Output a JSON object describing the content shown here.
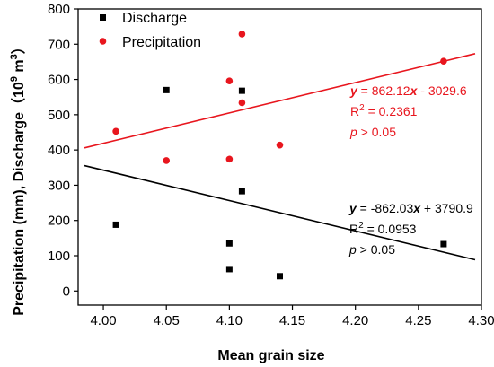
{
  "chart_data": {
    "type": "scatter",
    "xlabel": "Mean grain size",
    "ylabel_main": "Precipitation (mm), Discharge（",
    "ylabel_base": "10",
    "ylabel_exp": "9",
    "ylabel_unit": " m",
    "ylabel_unit_exp": "3",
    "ylabel_close": "）",
    "xlim": [
      3.98,
      4.3
    ],
    "ylim": [
      -40,
      800
    ],
    "xticks": [
      "4.00",
      "4.05",
      "4.10",
      "4.15",
      "4.20",
      "4.25",
      "4.30"
    ],
    "yticks": [
      "0",
      "100",
      "200",
      "300",
      "400",
      "500",
      "600",
      "700",
      "800"
    ],
    "grid": false,
    "legend_position": "top-left",
    "series": [
      {
        "name": "Discharge",
        "marker": "square",
        "color": "#000000",
        "points": [
          {
            "x": 4.01,
            "y": 188
          },
          {
            "x": 4.05,
            "y": 570
          },
          {
            "x": 4.1,
            "y": 135
          },
          {
            "x": 4.1,
            "y": 62
          },
          {
            "x": 4.11,
            "y": 568
          },
          {
            "x": 4.11,
            "y": 283
          },
          {
            "x": 4.14,
            "y": 42
          },
          {
            "x": 4.27,
            "y": 133
          }
        ],
        "fit": {
          "slope": -862.03,
          "intercept": 3790.9,
          "x_range": [
            3.985,
            4.295
          ],
          "eq_y": "y",
          "eq_mid": " = -862.03",
          "eq_x": "x",
          "eq_end": " + 3790.9",
          "r2_base": "R",
          "r2_exp": "2",
          "r2_value": " = 0.0953",
          "p_var": "p",
          "p_value": " > 0.05"
        }
      },
      {
        "name": "Precipitation",
        "marker": "circle",
        "color": "#e8161e",
        "points": [
          {
            "x": 4.01,
            "y": 453
          },
          {
            "x": 4.05,
            "y": 370
          },
          {
            "x": 4.1,
            "y": 596
          },
          {
            "x": 4.1,
            "y": 374
          },
          {
            "x": 4.11,
            "y": 729
          },
          {
            "x": 4.11,
            "y": 534
          },
          {
            "x": 4.14,
            "y": 414
          },
          {
            "x": 4.27,
            "y": 652
          }
        ],
        "fit": {
          "slope": 862.12,
          "intercept": -3029.6,
          "x_range": [
            3.985,
            4.295
          ],
          "eq_y": "y",
          "eq_mid": " = 862.12",
          "eq_x": "x",
          "eq_end": " - 3029.6",
          "r2_base": "R",
          "r2_exp": "2",
          "r2_value": " = 0.2361",
          "p_var": "p",
          "p_value": " > 0.05"
        }
      }
    ]
  }
}
